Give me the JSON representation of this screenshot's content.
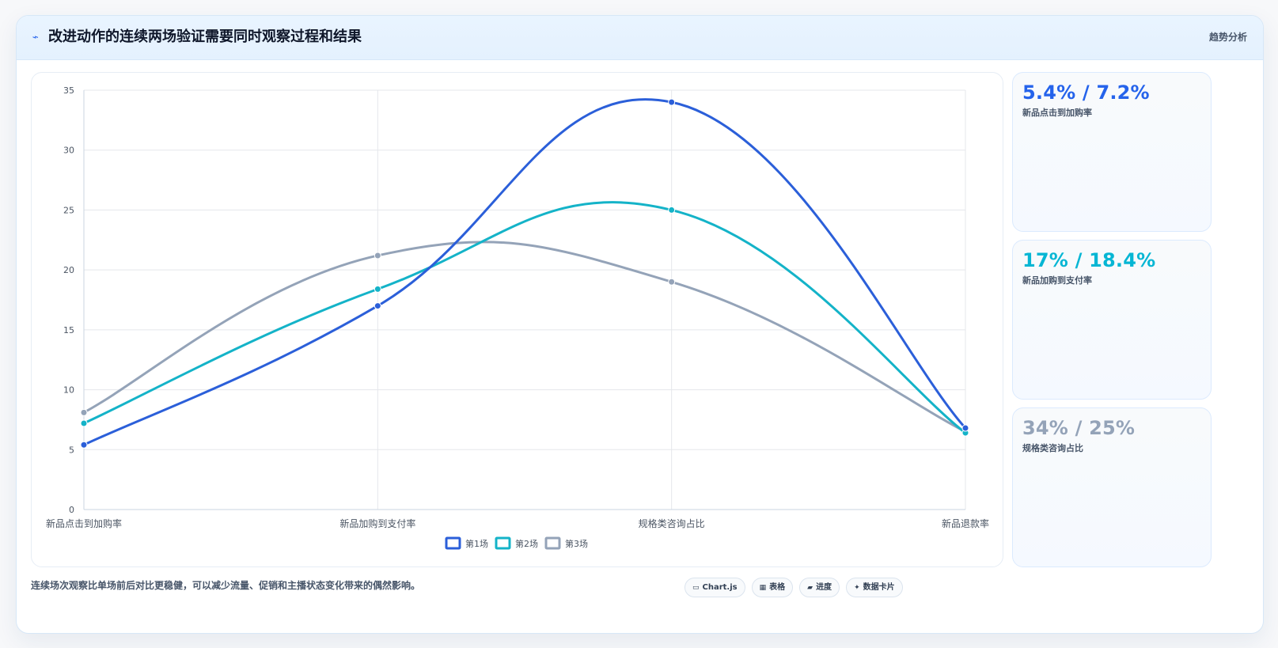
{
  "header": {
    "title": "改进动作的连续两场验证需要同时观察过程和结果",
    "action_label": "趋势分析",
    "icon_name": "trend-icon"
  },
  "footer": {
    "note": "连续场次观察比单场前后对比更稳健，可以减少流量、促销和主播状态变化带来的偶然影响。",
    "pills": [
      {
        "label": "Chart.js",
        "icon": "▭"
      },
      {
        "label": "表格",
        "icon": "▦"
      },
      {
        "label": "进度",
        "icon": "▰"
      },
      {
        "label": "数据卡片",
        "icon": "✦"
      }
    ]
  },
  "metrics": [
    {
      "value": "5.4% / 7.2%",
      "label": "新品点击到加购率",
      "color": "#2563eb"
    },
    {
      "value": "17% / 18.4%",
      "label": "新品加购到支付率",
      "color": "#06b6d4"
    },
    {
      "value": "34% / 25%",
      "label": "规格类咨询占比",
      "color": "#94a3b8"
    }
  ],
  "chart_data": {
    "type": "line",
    "categories": [
      "新品点击到加购率",
      "新品加购到支付率",
      "规格类咨询占比",
      "新品退款率"
    ],
    "series": [
      {
        "name": "第1场",
        "values": [
          5.4,
          17,
          34,
          6.8
        ],
        "color": "#2b5fd9"
      },
      {
        "name": "第2场",
        "values": [
          7.2,
          18.4,
          25,
          6.4
        ],
        "color": "#14b3c8"
      },
      {
        "name": "第3场",
        "values": [
          8.1,
          21.2,
          19,
          6.5
        ],
        "color": "#94a3b8"
      }
    ],
    "y_ticks": [
      0,
      5,
      10,
      15,
      20,
      25,
      30,
      35
    ],
    "ylim": [
      0,
      35
    ],
    "grid": true,
    "legend_position": "bottom-center"
  }
}
